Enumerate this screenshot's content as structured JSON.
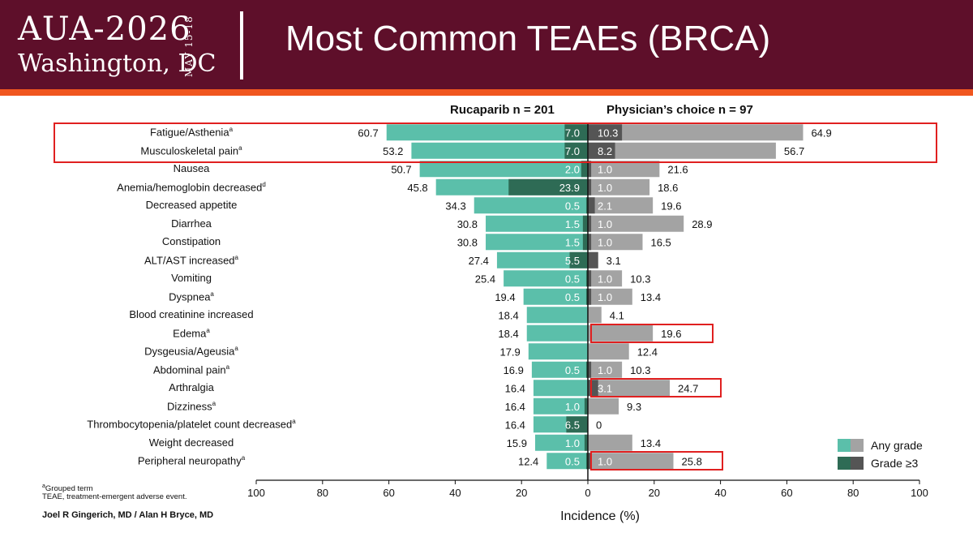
{
  "header": {
    "logo_main": "AUA-2026",
    "logo_city": "Washington, DC",
    "logo_date": "MAY 15-18",
    "title": "Most Common TEAEs (BRCA)"
  },
  "colors": {
    "header_bg": "#5e0f2a",
    "accent_orange": "#f0561f",
    "ruca_any": "#5bbfaa",
    "ruca_g3": "#2e6b55",
    "pc_any": "#a3a3a3",
    "pc_g3": "#555555",
    "highlight": "#e02020"
  },
  "footnotes": {
    "grouped": "Grouped term",
    "teae": "TEAE, treatment-emergent adverse event."
  },
  "authors": "Joel R Gingerich, MD / Alan H Bryce, MD",
  "chart_data": {
    "type": "bar",
    "orientation": "horizontal-butterfly",
    "left_title": "Rucaparib n = 201",
    "right_title": "Physician’s choice n = 97",
    "xlabel": "Incidence (%)",
    "xlim": [
      -100,
      100
    ],
    "x_ticks": [
      "100",
      "80",
      "60",
      "40",
      "20",
      "0",
      "20",
      "40",
      "60",
      "80",
      "100"
    ],
    "legend": [
      "Any grade",
      "Grade ≥3"
    ],
    "legend_position": "bottom-right",
    "categories": [
      {
        "label": "Fatigue/Asthenia",
        "sup": "a"
      },
      {
        "label": "Musculoskeletal pain",
        "sup": "a"
      },
      {
        "label": "Nausea",
        "sup": ""
      },
      {
        "label": "Anemia/hemoglobin decreased",
        "sup": "d"
      },
      {
        "label": "Decreased appetite",
        "sup": ""
      },
      {
        "label": "Diarrhea",
        "sup": ""
      },
      {
        "label": "Constipation",
        "sup": ""
      },
      {
        "label": "ALT/AST increased",
        "sup": "a"
      },
      {
        "label": "Vomiting",
        "sup": ""
      },
      {
        "label": "Dyspnea",
        "sup": "a"
      },
      {
        "label": "Blood creatinine increased",
        "sup": ""
      },
      {
        "label": "Edema",
        "sup": "a"
      },
      {
        "label": "Dysgeusia/Ageusia",
        "sup": "a"
      },
      {
        "label": "Abdominal pain",
        "sup": "a"
      },
      {
        "label": "Arthralgia",
        "sup": ""
      },
      {
        "label": "Dizziness",
        "sup": "a"
      },
      {
        "label": "Thrombocytopenia/platelet count decreased",
        "sup": "a"
      },
      {
        "label": "Weight decreased",
        "sup": ""
      },
      {
        "label": "Peripheral neuropathy",
        "sup": "a"
      }
    ],
    "series": [
      {
        "name": "Rucaparib any grade",
        "values": [
          60.7,
          53.2,
          50.7,
          45.8,
          34.3,
          30.8,
          30.8,
          27.4,
          25.4,
          19.4,
          18.4,
          18.4,
          17.9,
          16.9,
          16.4,
          16.4,
          16.4,
          15.9,
          12.4
        ]
      },
      {
        "name": "Rucaparib grade ≥3",
        "values": [
          7.0,
          7.0,
          2.0,
          23.9,
          0.5,
          1.5,
          1.5,
          5.5,
          0.5,
          0.5,
          0,
          0,
          0,
          0.5,
          0,
          1.0,
          6.5,
          1.0,
          0.5
        ]
      },
      {
        "name": "Physician’s choice any grade",
        "values": [
          64.9,
          56.7,
          21.6,
          18.6,
          19.6,
          28.9,
          16.5,
          3.1,
          10.3,
          13.4,
          4.1,
          19.6,
          12.4,
          10.3,
          24.7,
          9.3,
          0,
          13.4,
          25.8
        ]
      },
      {
        "name": "Physician’s choice grade ≥3",
        "values": [
          10.3,
          8.2,
          1.0,
          1.0,
          2.1,
          1.0,
          1.0,
          3.1,
          1.0,
          1.0,
          0,
          0,
          0,
          1.0,
          3.1,
          0,
          0,
          0,
          1.0
        ]
      }
    ],
    "left_any_labels": [
      "60.7",
      "53.2",
      "50.7",
      "45.8",
      "34.3",
      "30.8",
      "30.8",
      "27.4",
      "25.4",
      "19.4",
      "18.4",
      "18.4",
      "17.9",
      "16.9",
      "16.4",
      "16.4",
      "16.4",
      "15.9",
      "12.4"
    ],
    "left_g3_labels": [
      "7.0",
      "7.0",
      "2.0",
      "23.9",
      "0.5",
      "1.5",
      "1.5",
      "5.5",
      "0.5",
      "0.5",
      "",
      "",
      "",
      "0.5",
      "",
      "1.0",
      "6.5",
      "1.0",
      "0.5"
    ],
    "right_any_labels": [
      "64.9",
      "56.7",
      "21.6",
      "18.6",
      "19.6",
      "28.9",
      "16.5",
      "3.1",
      "10.3",
      "13.4",
      "4.1",
      "19.6",
      "12.4",
      "10.3",
      "24.7",
      "9.3",
      "0",
      "13.4",
      "25.8"
    ],
    "right_g3_labels": [
      "10.3",
      "8.2",
      "1.0",
      "1.0",
      "2.1",
      "1.0",
      "1.0",
      "",
      "1.0",
      "1.0",
      "",
      "",
      "",
      "1.0",
      "3.1",
      "",
      "",
      "",
      "1.0"
    ],
    "highlighted_rows": [
      0,
      1,
      11,
      14,
      18
    ]
  }
}
